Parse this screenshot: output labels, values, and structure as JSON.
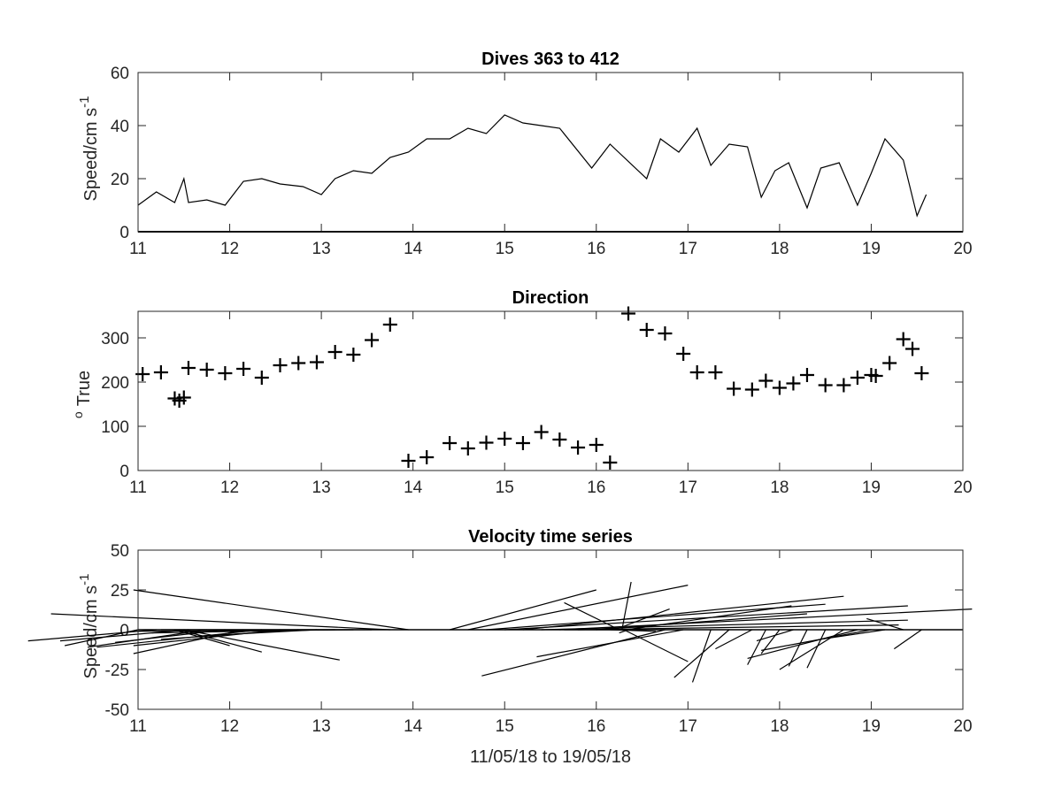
{
  "chart_data": [
    {
      "type": "line",
      "title": "Dives 363 to 412",
      "ylabel": "Speed/cm s",
      "ylabel_sup": "-1",
      "xlim": [
        11,
        20
      ],
      "ylim": [
        0,
        60
      ],
      "xticks": [
        "11",
        "12",
        "13",
        "14",
        "15",
        "16",
        "17",
        "18",
        "19",
        "20"
      ],
      "yticks": [
        "0",
        "20",
        "40",
        "60"
      ],
      "series": [
        {
          "x": [
            11.0,
            11.2,
            11.4,
            11.5,
            11.55,
            11.75,
            11.95,
            12.15,
            12.35,
            12.55,
            12.8,
            13.0,
            13.15,
            13.35,
            13.55,
            13.75,
            13.95,
            14.15,
            14.4,
            14.6,
            14.8,
            15.0,
            15.2,
            15.4,
            15.6,
            15.95,
            16.15,
            16.55,
            16.7,
            16.9,
            17.1,
            17.25,
            17.45,
            17.65,
            17.8,
            17.95,
            18.1,
            18.3,
            18.45,
            18.65,
            18.85,
            19.0,
            19.15,
            19.35,
            19.5,
            19.6
          ],
          "y": [
            10,
            15,
            11,
            20,
            11,
            12,
            10,
            19,
            20,
            18,
            17,
            14,
            20,
            23,
            22,
            28,
            30,
            35,
            35,
            39,
            37,
            44,
            41,
            40,
            39,
            24,
            33,
            20,
            35,
            30,
            39,
            25,
            33,
            32,
            13,
            23,
            26,
            9,
            24,
            26,
            10,
            22,
            35,
            27,
            6,
            14
          ]
        }
      ]
    },
    {
      "type": "scatter",
      "title": "Direction",
      "ylabel": "True",
      "ylabel_sup": "o",
      "xlim": [
        11,
        20
      ],
      "ylim": [
        0,
        360
      ],
      "xticks": [
        "11",
        "12",
        "13",
        "14",
        "15",
        "16",
        "17",
        "18",
        "19",
        "20"
      ],
      "yticks": [
        "0",
        "100",
        "200",
        "300"
      ],
      "series": [
        {
          "x": [
            11.05,
            11.25,
            11.4,
            11.45,
            11.5,
            11.55,
            11.75,
            11.95,
            12.15,
            12.35,
            12.55,
            12.75,
            12.95,
            13.15,
            13.35,
            13.55,
            13.75,
            13.95,
            14.15,
            14.4,
            14.6,
            14.8,
            15.0,
            15.2,
            15.4,
            15.6,
            15.8,
            16.0,
            16.15,
            16.35,
            16.55,
            16.75,
            16.95,
            17.1,
            17.3,
            17.5,
            17.7,
            17.85,
            18.0,
            18.15,
            18.3,
            18.5,
            18.7,
            18.85,
            19.0,
            19.05,
            19.2,
            19.35,
            19.45,
            19.55
          ],
          "y": [
            218,
            222,
            163,
            158,
            165,
            232,
            228,
            220,
            230,
            210,
            238,
            243,
            245,
            268,
            262,
            295,
            330,
            22,
            30,
            62,
            50,
            63,
            72,
            62,
            87,
            70,
            52,
            58,
            18,
            355,
            318,
            310,
            264,
            222,
            222,
            185,
            183,
            203,
            187,
            197,
            216,
            193,
            193,
            210,
            216,
            214,
            243,
            297,
            275,
            220
          ]
        }
      ]
    },
    {
      "type": "stick",
      "title": "Velocity time series",
      "ylabel": "Speed/cm s",
      "ylabel_sup": "-1",
      "xlabel": "11/05/18 to 19/05/18",
      "xlim": [
        11,
        20
      ],
      "ylim": [
        -50,
        50
      ],
      "xticks": [
        "11",
        "12",
        "13",
        "14",
        "15",
        "16",
        "17",
        "18",
        "19",
        "20"
      ],
      "yticks": [
        "-50",
        "-25",
        "0",
        "25",
        "50"
      ],
      "sticks": [
        {
          "x": 11.0,
          "u": -0.8,
          "v": -10
        },
        {
          "x": 11.2,
          "u": -1.4,
          "v": -7
        },
        {
          "x": 11.4,
          "u": 0.6,
          "v": -10
        },
        {
          "x": 11.45,
          "u": 0.9,
          "v": -14
        },
        {
          "x": 11.5,
          "u": 1.7,
          "v": -19
        },
        {
          "x": 11.55,
          "u": -1.4,
          "v": -7
        },
        {
          "x": 11.75,
          "u": -1.3,
          "v": -11
        },
        {
          "x": 11.95,
          "u": -1.2,
          "v": -8
        },
        {
          "x": 12.15,
          "u": -1.2,
          "v": -15
        },
        {
          "x": 12.35,
          "u": -1.8,
          "v": -11
        },
        {
          "x": 12.55,
          "u": -1.6,
          "v": -10
        },
        {
          "x": 12.75,
          "u": -1.5,
          "v": -6
        },
        {
          "x": 12.95,
          "u": -1.3,
          "v": -4
        },
        {
          "x": 13.15,
          "u": -2.0,
          "v": -2
        },
        {
          "x": 13.35,
          "u": -2.4,
          "v": -1
        },
        {
          "x": 13.55,
          "u": -2.3,
          "v": 0
        },
        {
          "x": 13.75,
          "u": -3.7,
          "v": 10
        },
        {
          "x": 13.95,
          "u": -3.0,
          "v": 25
        },
        {
          "x": 14.15,
          "u": 0.0,
          "v": 0
        },
        {
          "x": 14.4,
          "u": 1.6,
          "v": 25
        },
        {
          "x": 14.6,
          "u": 2.4,
          "v": 28
        },
        {
          "x": 14.8,
          "u": 3.7,
          "v": 16
        },
        {
          "x": 15.0,
          "u": 4.4,
          "v": 15
        },
        {
          "x": 15.2,
          "u": 3.5,
          "v": 21
        },
        {
          "x": 15.4,
          "u": 4.0,
          "v": 6
        },
        {
          "x": 15.6,
          "u": 4.5,
          "v": 13
        },
        {
          "x": 15.8,
          "u": 3.5,
          "v": 3
        },
        {
          "x": 16.0,
          "u": 2.3,
          "v": 10
        },
        {
          "x": 16.15,
          "u": 0.5,
          "v": -1
        },
        {
          "x": 16.2,
          "u": 0.6,
          "v": 13
        },
        {
          "x": 16.25,
          "u": -0.6,
          "v": 17
        },
        {
          "x": 16.28,
          "u": 0.1,
          "v": 30
        },
        {
          "x": 16.3,
          "u": 0.7,
          "v": -20
        },
        {
          "x": 16.33,
          "u": 1.8,
          "v": 15
        },
        {
          "x": 16.35,
          "u": -0.1,
          "v": -2
        },
        {
          "x": 16.55,
          "u": -0.9,
          "v": 0
        },
        {
          "x": 16.75,
          "u": -2.0,
          "v": -29
        },
        {
          "x": 16.95,
          "u": -1.6,
          "v": -17
        },
        {
          "x": 17.25,
          "u": -0.2,
          "v": -33
        },
        {
          "x": 17.45,
          "u": -0.6,
          "v": -30
        },
        {
          "x": 17.7,
          "u": -0.4,
          "v": -12
        },
        {
          "x": 17.85,
          "u": -0.2,
          "v": -22
        },
        {
          "x": 18.0,
          "u": -0.2,
          "v": -15
        },
        {
          "x": 18.15,
          "u": -0.4,
          "v": -7
        },
        {
          "x": 18.3,
          "u": -0.2,
          "v": -23
        },
        {
          "x": 18.5,
          "u": -0.2,
          "v": -24
        },
        {
          "x": 18.7,
          "u": -0.7,
          "v": -25
        },
        {
          "x": 18.85,
          "u": -1.2,
          "v": -18
        },
        {
          "x": 19.0,
          "u": -1.2,
          "v": -13
        },
        {
          "x": 19.15,
          "u": -0.7,
          "v": -6
        },
        {
          "x": 19.35,
          "u": -0.4,
          "v": 7
        },
        {
          "x": 19.55,
          "u": -0.3,
          "v": -12
        }
      ]
    }
  ]
}
